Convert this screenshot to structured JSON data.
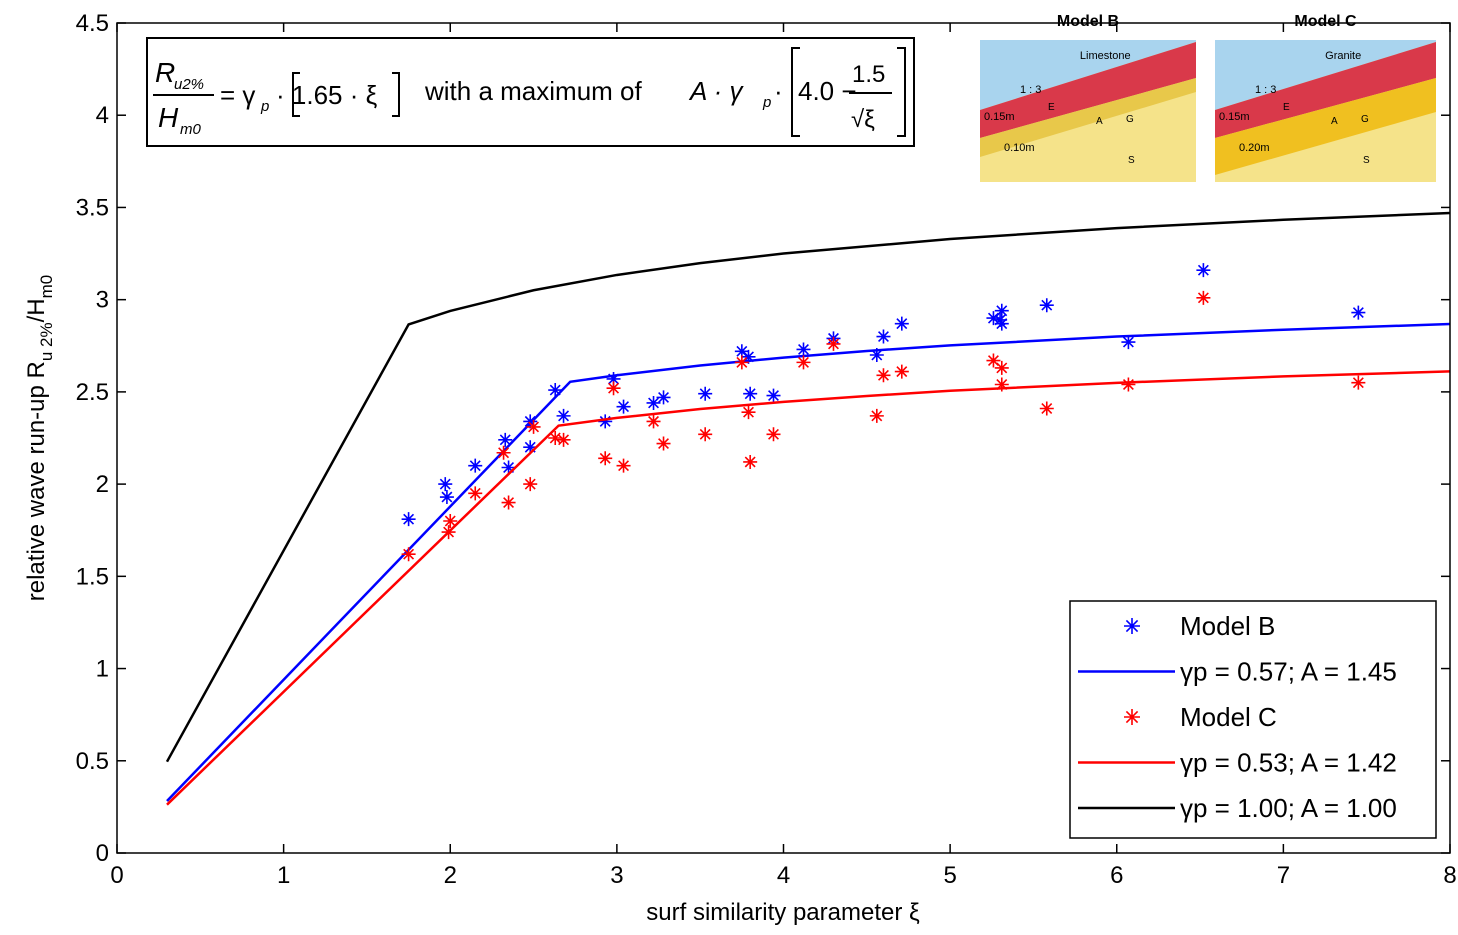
{
  "chart_data": {
    "type": "line",
    "xlabel": "surf similarity parameter ξ",
    "ylabel": {
      "main": "relative wave run-up R",
      "sub1": "u 2%",
      "mid": "/H",
      "sub2": "m0"
    },
    "xlim": [
      0,
      8
    ],
    "ylim": [
      0,
      4.5
    ],
    "xticks": [
      0,
      1,
      2,
      3,
      4,
      5,
      6,
      7,
      8
    ],
    "yticks": [
      0,
      0.5,
      1,
      1.5,
      2,
      2.5,
      3,
      3.5,
      4,
      4.5
    ],
    "grid": false,
    "legend": "lower right",
    "series": [
      {
        "name": "Model B",
        "color": "#0000ff",
        "style": "markers",
        "x": [
          1.75,
          1.97,
          1.98,
          2.15,
          2.33,
          2.35,
          2.48,
          2.48,
          2.63,
          2.68,
          2.93,
          2.98,
          3.04,
          3.22,
          3.28,
          3.53,
          3.75,
          3.79,
          3.8,
          3.94,
          4.12,
          4.3,
          4.56,
          4.6,
          4.71,
          5.26,
          5.3,
          5.31,
          5.31,
          5.58,
          6.07,
          6.52,
          7.45
        ],
        "values": [
          1.81,
          2.0,
          1.93,
          2.1,
          2.24,
          2.09,
          2.34,
          2.2,
          2.51,
          2.37,
          2.34,
          2.57,
          2.42,
          2.44,
          2.47,
          2.49,
          2.72,
          2.69,
          2.49,
          2.48,
          2.73,
          2.79,
          2.7,
          2.8,
          2.87,
          2.9,
          2.89,
          2.94,
          2.87,
          2.97,
          2.77,
          3.16,
          2.93
        ]
      },
      {
        "name": "γp = 0.57; A = 1.45",
        "color": "#0000ff",
        "style": "line",
        "x": [
          0.3,
          2.72,
          3,
          3.5,
          4,
          4.5,
          5,
          6,
          7,
          8
        ],
        "values": [
          0.282,
          2.555,
          2.59,
          2.643,
          2.686,
          2.722,
          2.752,
          2.8,
          2.837,
          2.868
        ]
      },
      {
        "name": "Model C",
        "color": "#ff0000",
        "style": "markers",
        "x": [
          1.75,
          1.99,
          2.0,
          2.15,
          2.32,
          2.35,
          2.48,
          2.5,
          2.63,
          2.68,
          2.93,
          2.98,
          3.04,
          3.22,
          3.28,
          3.53,
          3.75,
          3.79,
          3.8,
          3.94,
          4.12,
          4.3,
          4.56,
          4.6,
          4.71,
          5.26,
          5.31,
          5.31,
          5.58,
          6.07,
          6.52,
          7.45
        ],
        "values": [
          1.62,
          1.74,
          1.8,
          1.95,
          2.17,
          1.9,
          2.0,
          2.31,
          2.25,
          2.24,
          2.14,
          2.52,
          2.1,
          2.34,
          2.22,
          2.27,
          2.66,
          2.39,
          2.12,
          2.27,
          2.66,
          2.76,
          2.37,
          2.59,
          2.61,
          2.67,
          2.63,
          2.54,
          2.41,
          2.54,
          3.01,
          2.55
        ]
      },
      {
        "name": "γp = 0.53; A = 1.42",
        "color": "#ff0000",
        "style": "line",
        "x": [
          0.3,
          2.65,
          3,
          3.5,
          4,
          4.5,
          5,
          6,
          7,
          8
        ],
        "values": [
          0.262,
          2.317,
          2.359,
          2.407,
          2.446,
          2.478,
          2.506,
          2.549,
          2.584,
          2.611
        ]
      },
      {
        "name": "γp = 1.00; A = 1.00",
        "color": "#000000",
        "style": "line",
        "x": [
          0.3,
          1.75,
          2,
          2.5,
          3,
          3.5,
          4,
          5,
          6,
          7,
          8
        ],
        "values": [
          0.495,
          2.866,
          2.939,
          3.051,
          3.134,
          3.198,
          3.25,
          3.329,
          3.388,
          3.433,
          3.47
        ]
      }
    ],
    "formula": {
      "numerator": "R",
      "numerator_sub": "u2%",
      "denominator": "H",
      "denominator_sub": "m0",
      "rhs": "= γ",
      "rhs_sub": "p",
      "rhs_rest": "· 1.65 · ξ",
      "middle": "with a maximum of",
      "max_prefix": "A · γ",
      "max_prefix_sub": "p",
      "max_dot": "·",
      "max_bracket": "4.0 −",
      "max_num": "1.5",
      "max_den": "√ξ"
    },
    "insets": [
      {
        "title": "Model B",
        "material": "Limestone",
        "slope": "1 : 3",
        "armour": "0.15m",
        "filter": "0.10m",
        "labels": [
          "E",
          "A",
          "G",
          "S"
        ]
      },
      {
        "title": "Model C",
        "material": "Granite",
        "slope": "1 : 3",
        "armour": "0.15m",
        "filter": "0.20m",
        "labels": [
          "E",
          "A",
          "G",
          "S"
        ]
      }
    ]
  }
}
